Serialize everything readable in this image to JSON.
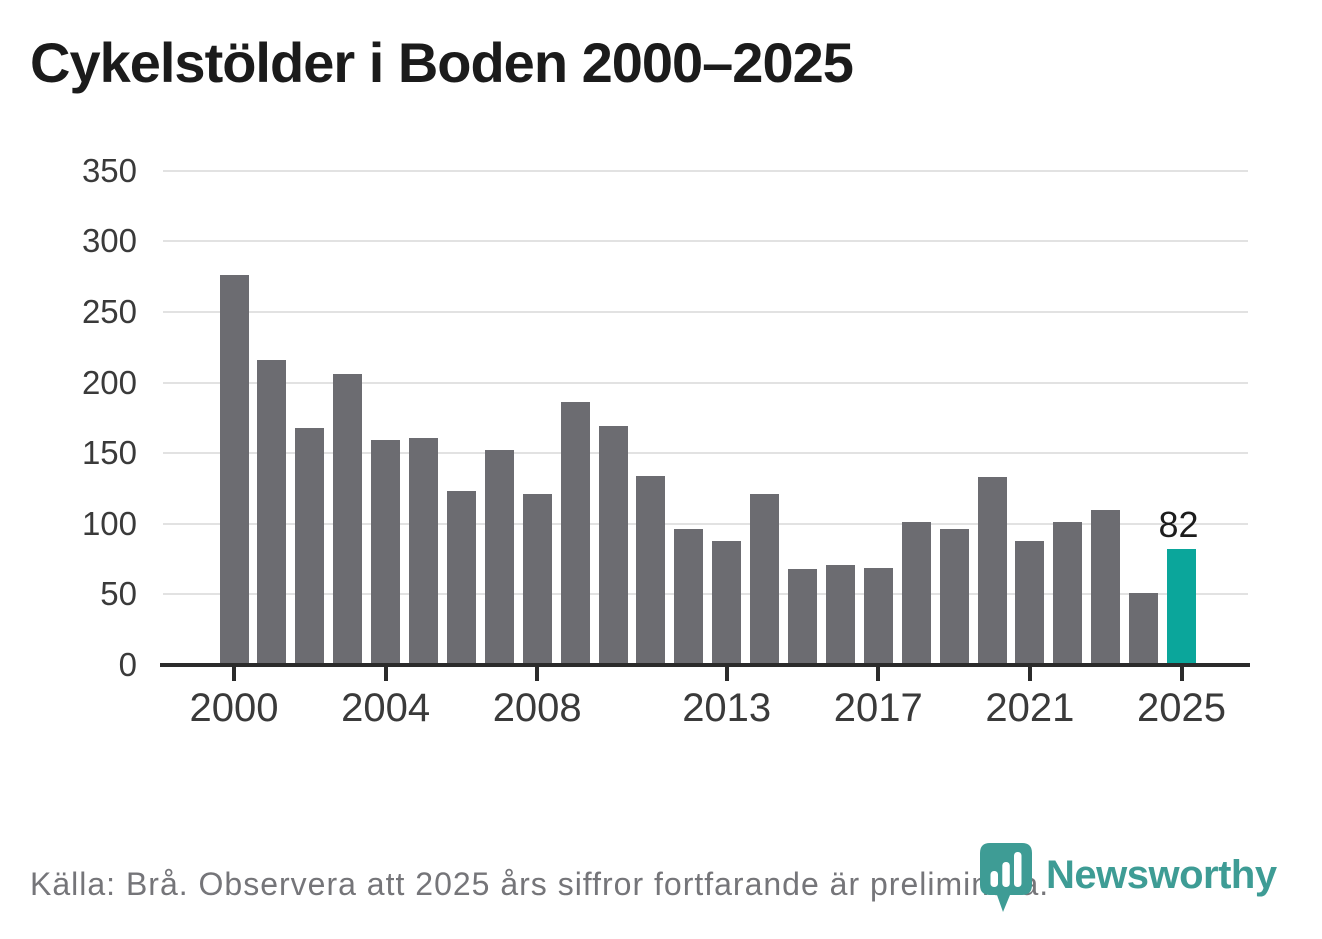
{
  "title": "Cykelstölder i Boden 2000–2025",
  "footer": {
    "source_text": "Källa: Brå. Observera att 2025 års siffror fortfarande är preliminära."
  },
  "branding": {
    "logo_text": "Newsworthy",
    "logo_icon": "bar-chart-shield-icon",
    "logo_color": "#3e9c95"
  },
  "colors": {
    "bar": "#6c6c71",
    "highlight_bar": "#0ba69b",
    "axis": "#2b2b2b",
    "gridline": "#e2e2e2",
    "tick_label": "#3a3a3a",
    "annotation_text": "#1d1d1d",
    "source_text": "#757579"
  },
  "chart_data": {
    "type": "bar",
    "title": "Cykelstölder i Boden 2000–2025",
    "categories": [
      "2000",
      "2001",
      "2002",
      "2003",
      "2004",
      "2005",
      "2006",
      "2007",
      "2008",
      "2009",
      "2010",
      "2011",
      "2012",
      "2013",
      "2014",
      "2015",
      "2016",
      "2017",
      "2018",
      "2019",
      "2020",
      "2021",
      "2022",
      "2023",
      "2024",
      "2025"
    ],
    "values": [
      276,
      216,
      168,
      206,
      159,
      161,
      123,
      152,
      121,
      186,
      169,
      134,
      96,
      88,
      121,
      68,
      71,
      69,
      101,
      96,
      133,
      88,
      101,
      110,
      51,
      82
    ],
    "xlabel": "",
    "ylabel": "",
    "ylim": [
      0,
      350
    ],
    "y_ticks": [
      0,
      50,
      100,
      150,
      200,
      250,
      300,
      350
    ],
    "x_tick_labels": [
      "2000",
      "2004",
      "2008",
      "2013",
      "2017",
      "2021",
      "2025"
    ],
    "grid": "horizontal",
    "legend": "none",
    "highlight_category": "2025",
    "annotation": {
      "text": "82",
      "category": "2025"
    }
  }
}
